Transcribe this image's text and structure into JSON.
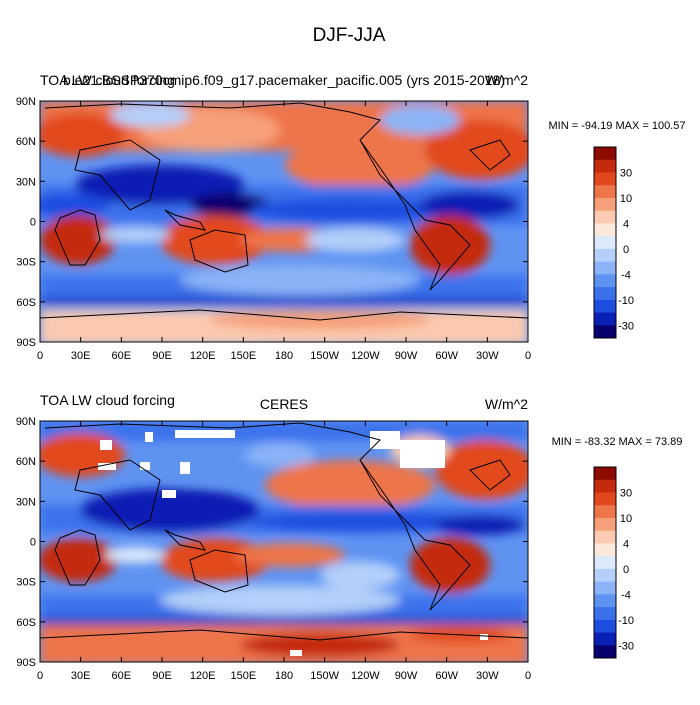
{
  "figure": {
    "title": "DJF-JJA"
  },
  "chart_data": [
    {
      "type": "heatmap",
      "left_title": "TOA LW cloud forcing",
      "center_title": "b.e21.BSSP370cmip6.f09_g17.pacemaker_pacific.005 (yrs 2015-2018)",
      "right_title": "W/m^2",
      "stats": "MIN = -94.19 MAX = 100.57",
      "min": -94.19,
      "max": 100.57,
      "x_ticks": [
        "0",
        "30E",
        "60E",
        "90E",
        "120E",
        "150E",
        "180",
        "150W",
        "120W",
        "90W",
        "60W",
        "30W",
        "0"
      ],
      "y_ticks": [
        "90N",
        "60N",
        "30N",
        "0",
        "30S",
        "60S",
        "90S"
      ],
      "xlim": [
        0,
        360
      ],
      "ylim": [
        -90,
        90
      ],
      "colorbar_labels": [
        "30",
        "10",
        "4",
        "0",
        "-4",
        "-10",
        "-30"
      ]
    },
    {
      "type": "heatmap",
      "left_title": "TOA LW cloud forcing",
      "center_title": "CERES",
      "right_title": "W/m^2",
      "stats": "MIN = -83.32 MAX =  73.89",
      "min": -83.32,
      "max": 73.89,
      "x_ticks": [
        "0",
        "30E",
        "60E",
        "90E",
        "120E",
        "150E",
        "180",
        "150W",
        "120W",
        "90W",
        "60W",
        "30W",
        "0"
      ],
      "y_ticks": [
        "90N",
        "60N",
        "30N",
        "0",
        "30S",
        "60S",
        "90S"
      ],
      "xlim": [
        0,
        360
      ],
      "ylim": [
        -90,
        90
      ],
      "colorbar_labels": [
        "30",
        "10",
        "4",
        "0",
        "-4",
        "-10",
        "-30"
      ]
    }
  ],
  "colors": {
    "scale": [
      "#08006e",
      "#0a1fb4",
      "#1e4ee0",
      "#3b72ec",
      "#5f93f2",
      "#8bb3f6",
      "#b4cff9",
      "#dce9fb",
      "#fde9dc",
      "#fbcab0",
      "#f6a07a",
      "#ee7449",
      "#e2481e",
      "#c42a0c",
      "#8c0a00"
    ]
  }
}
